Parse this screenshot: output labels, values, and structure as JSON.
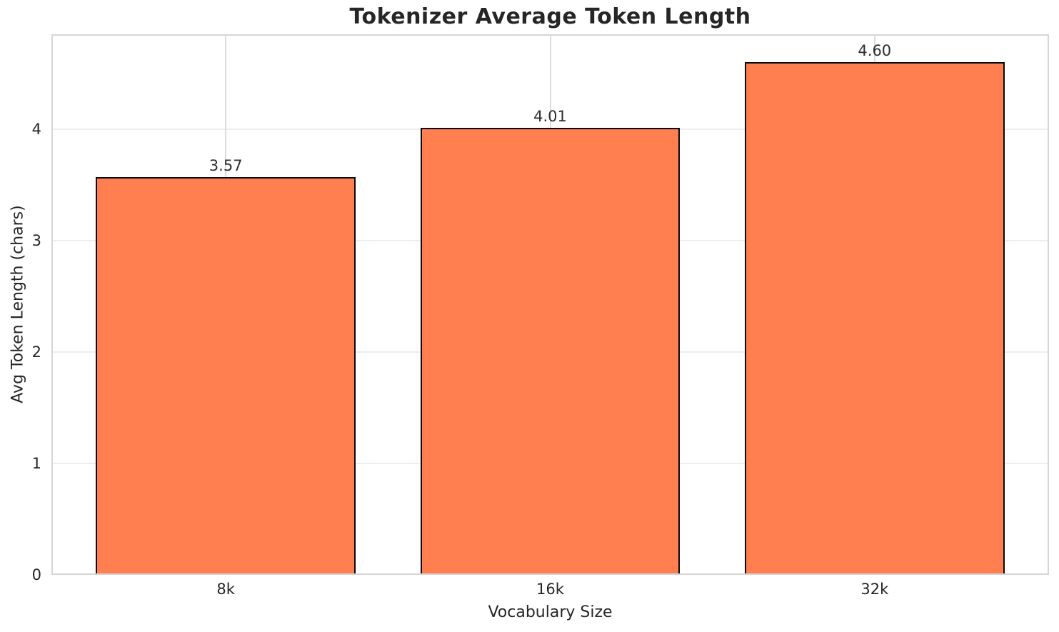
{
  "chart_data": {
    "type": "bar",
    "title": "Tokenizer Average Token Length",
    "categories": [
      "8k",
      "16k",
      "32k"
    ],
    "values": [
      3.57,
      4.01,
      4.6
    ],
    "value_labels": [
      "3.57",
      "4.01",
      "4.60"
    ],
    "xlabel": "Vocabulary Size",
    "ylabel": "Avg Token Length (chars)",
    "ylim": [
      0,
      4.85
    ],
    "yticks": [
      0,
      1,
      2,
      3,
      4
    ],
    "ytick_labels": [
      "0",
      "1",
      "2",
      "3",
      "4"
    ],
    "grid": "on",
    "legend": "none",
    "bar_color": "#FF7F50",
    "bar_edge_color": "#0a0a0a",
    "background_color": "#FFFFFF",
    "horizontal_grid_color": "#EDEDED",
    "vertical_grid_color": "#DCDCDC",
    "spine_color": "#D5D5D5",
    "text_color": "#262626"
  }
}
